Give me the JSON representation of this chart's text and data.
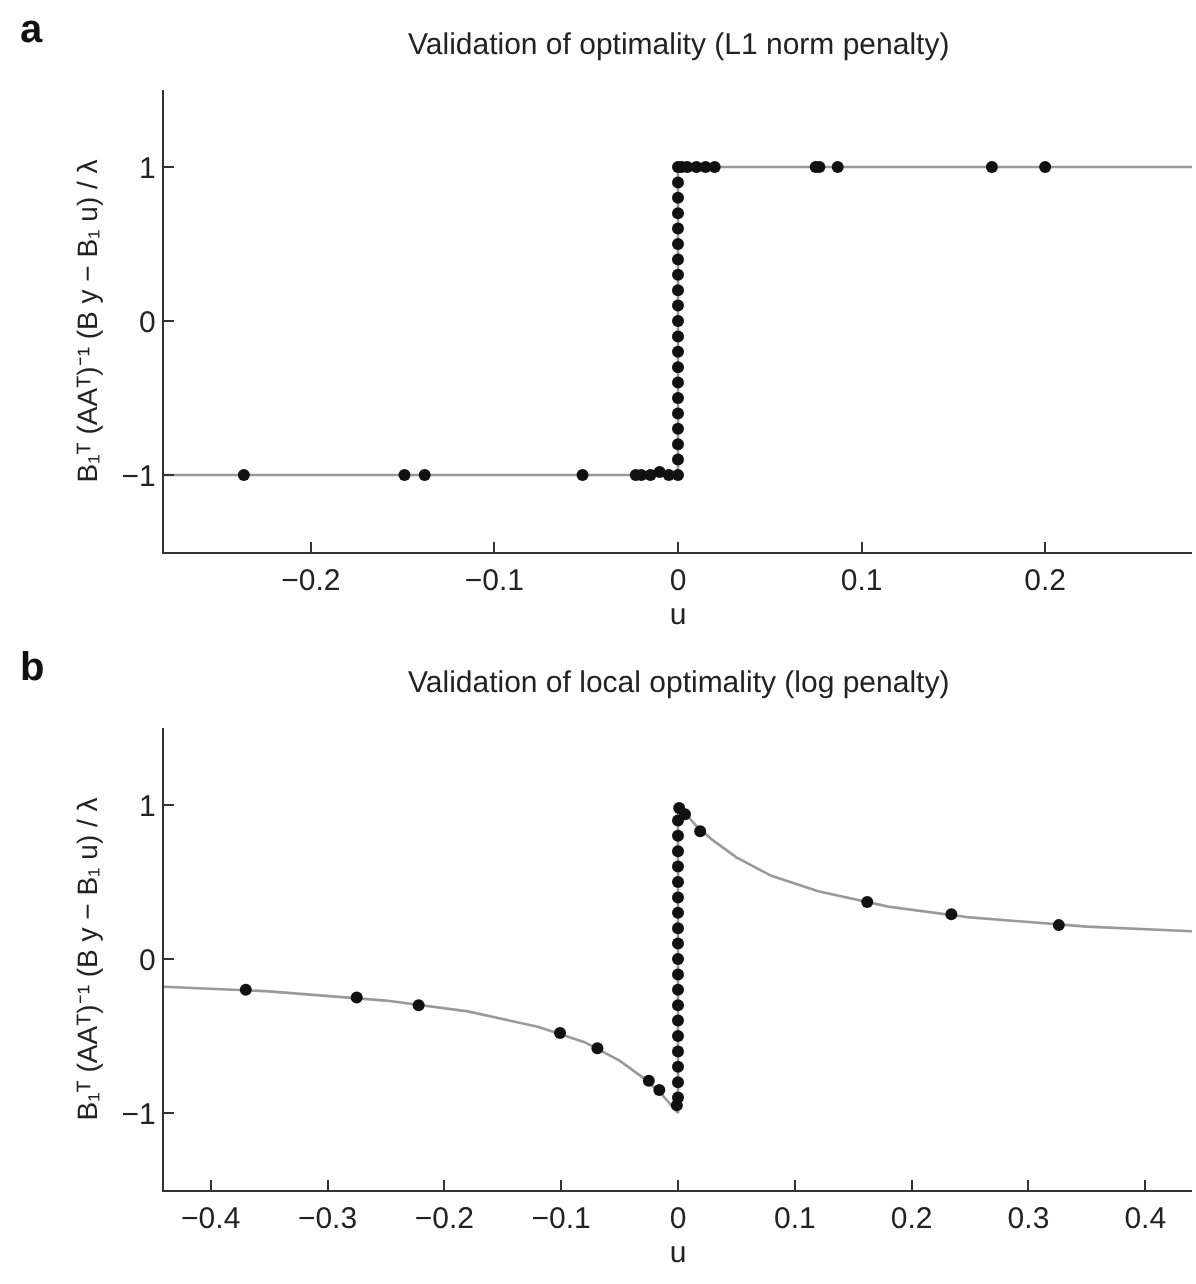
{
  "chart_data": [
    {
      "type": "scatter",
      "title": "Validation of optimality (L1 norm penalty)",
      "xlabel": "u",
      "ylabel": "B₁ᵀ (AAᵀ)⁻¹ (B y − B₁ u) / λ",
      "annotations": [
        "a"
      ],
      "xlim": [
        -0.28,
        0.28
      ],
      "xticks": [
        -0.2,
        -0.1,
        0,
        0.1,
        0.2
      ],
      "ylim": [
        -1.5,
        1.5
      ],
      "yticks": [
        -1,
        0,
        1
      ],
      "series": [
        {
          "type": "line",
          "color": "#999999",
          "line_style": "solid",
          "marker": "none",
          "x": [
            -0.28,
            0,
            0,
            0.28
          ],
          "values": [
            -1,
            -1,
            1,
            1
          ]
        },
        {
          "type": "scatter",
          "color": "#111111",
          "marker": "circle",
          "x": [
            -0.2365,
            -0.149,
            -0.138,
            -0.052,
            -0.023,
            -0.02,
            -0.015,
            -0.01,
            -0.005,
            0,
            0,
            0,
            0,
            0,
            0,
            0,
            0,
            0,
            0,
            0,
            0,
            0,
            0,
            0,
            0,
            0,
            0,
            0,
            0,
            0,
            0.002,
            0.005,
            0.01,
            0.015,
            0.02,
            0.075,
            0.077,
            0.087,
            0.171,
            0.2
          ],
          "values": [
            -1,
            -1,
            -1,
            -1,
            -1,
            -1,
            -1,
            -0.98,
            -1,
            -1,
            -0.9,
            -0.8,
            -0.7,
            -0.6,
            -0.5,
            -0.4,
            -0.3,
            -0.2,
            -0.1,
            0,
            0.1,
            0.2,
            0.3,
            0.4,
            0.5,
            0.6,
            0.7,
            0.8,
            0.9,
            1,
            1,
            1,
            1,
            1,
            1,
            1,
            1,
            1,
            1,
            1
          ]
        }
      ]
    },
    {
      "type": "scatter",
      "title": "Validation of local optimality (log penalty)",
      "xlabel": "u",
      "ylabel": "B₁ᵀ (AAᵀ)⁻¹ (B y − B₁ u) / λ",
      "annotations": [
        "b"
      ],
      "xlim": [
        -0.44,
        0.44
      ],
      "xticks": [
        -0.4,
        -0.3,
        -0.2,
        -0.1,
        0,
        0.1,
        0.2,
        0.3,
        0.4
      ],
      "ylim": [
        -1.5,
        1.5
      ],
      "yticks": [
        -1,
        0,
        1
      ],
      "series": [
        {
          "type": "line",
          "color": "#999999",
          "line_style": "solid",
          "marker": "none",
          "x": [
            -0.44,
            -0.35,
            -0.25,
            -0.18,
            -0.12,
            -0.08,
            -0.05,
            -0.03,
            -0.015,
            0,
            0,
            0.015,
            0.03,
            0.05,
            0.08,
            0.12,
            0.18,
            0.25,
            0.35,
            0.44
          ],
          "values": [
            -0.18,
            -0.21,
            -0.27,
            -0.34,
            -0.44,
            -0.54,
            -0.66,
            -0.77,
            -0.87,
            -1.0,
            1.0,
            0.87,
            0.77,
            0.66,
            0.54,
            0.44,
            0.34,
            0.27,
            0.21,
            0.18
          ]
        },
        {
          "type": "scatter",
          "color": "#111111",
          "marker": "circle",
          "x": [
            -0.37,
            -0.275,
            -0.222,
            -0.101,
            -0.069,
            -0.025,
            -0.016,
            -0.001,
            0,
            0,
            0,
            0,
            0,
            0,
            0,
            0,
            0,
            0,
            0,
            0,
            0,
            0,
            0,
            0,
            0,
            0,
            0,
            0.001,
            0.006,
            0.019,
            0.162,
            0.234,
            0.326
          ],
          "values": [
            -0.2,
            -0.25,
            -0.3,
            -0.48,
            -0.58,
            -0.79,
            -0.85,
            -0.95,
            -0.9,
            -0.8,
            -0.7,
            -0.6,
            -0.5,
            -0.4,
            -0.3,
            -0.2,
            -0.1,
            0,
            0.1,
            0.2,
            0.3,
            0.4,
            0.5,
            0.6,
            0.7,
            0.8,
            0.9,
            0.98,
            0.94,
            0.83,
            0.37,
            0.29,
            0.22
          ]
        }
      ]
    }
  ]
}
